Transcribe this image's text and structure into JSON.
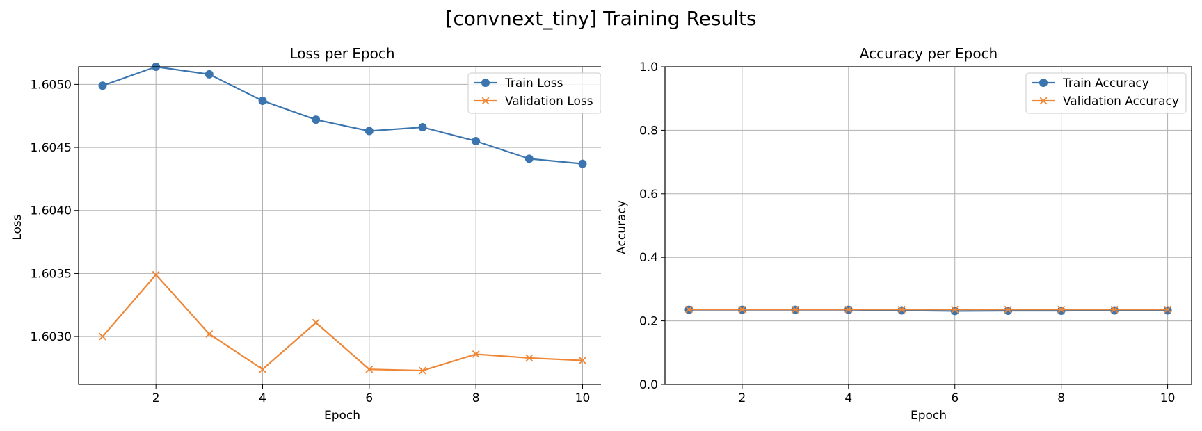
{
  "figure": {
    "title": "[convnext_tiny] Training Results"
  },
  "chart_data": [
    {
      "type": "line",
      "title": "Loss per Epoch",
      "xlabel": "Epoch",
      "ylabel": "Loss",
      "x": [
        1,
        2,
        3,
        4,
        5,
        6,
        7,
        8,
        9,
        10
      ],
      "xlim": [
        0.55,
        10.45
      ],
      "ylim": [
        1.60262,
        1.60514
      ],
      "xticks": [
        2,
        4,
        6,
        8,
        10
      ],
      "yticks": [
        1.603,
        1.6035,
        1.604,
        1.6045,
        1.605
      ],
      "ytick_labels": [
        "1.6030",
        "1.6035",
        "1.6040",
        "1.6045",
        "1.6050"
      ],
      "grid": true,
      "legend_position": "top-right",
      "series": [
        {
          "name": "Train Loss",
          "color": "#3b75af",
          "marker": "circle",
          "values": [
            1.60499,
            1.60514,
            1.60508,
            1.60487,
            1.60472,
            1.60463,
            1.60466,
            1.60455,
            1.60441,
            1.60437
          ]
        },
        {
          "name": "Validation Loss",
          "color": "#ef8636",
          "marker": "x",
          "values": [
            1.603,
            1.60349,
            1.60302,
            1.60274,
            1.60311,
            1.60274,
            1.60273,
            1.60286,
            1.60283,
            1.60281
          ]
        }
      ]
    },
    {
      "type": "line",
      "title": "Accuracy per Epoch",
      "xlabel": "Epoch",
      "ylabel": "Accuracy",
      "x": [
        1,
        2,
        3,
        4,
        5,
        6,
        7,
        8,
        9,
        10
      ],
      "xlim": [
        0.55,
        10.45
      ],
      "ylim": [
        0.0,
        1.0
      ],
      "xticks": [
        2,
        4,
        6,
        8,
        10
      ],
      "yticks": [
        0.0,
        0.2,
        0.4,
        0.6,
        0.8,
        1.0
      ],
      "ytick_labels": [
        "0.0",
        "0.2",
        "0.4",
        "0.6",
        "0.8",
        "1.0"
      ],
      "grid": true,
      "legend_position": "top-right",
      "series": [
        {
          "name": "Train Accuracy",
          "color": "#3b75af",
          "marker": "circle",
          "values": [
            0.235,
            0.235,
            0.235,
            0.235,
            0.233,
            0.231,
            0.232,
            0.232,
            0.233,
            0.233
          ]
        },
        {
          "name": "Validation Accuracy",
          "color": "#ef8636",
          "marker": "x",
          "values": [
            0.236,
            0.236,
            0.236,
            0.236,
            0.236,
            0.236,
            0.236,
            0.236,
            0.236,
            0.236
          ]
        }
      ]
    }
  ]
}
